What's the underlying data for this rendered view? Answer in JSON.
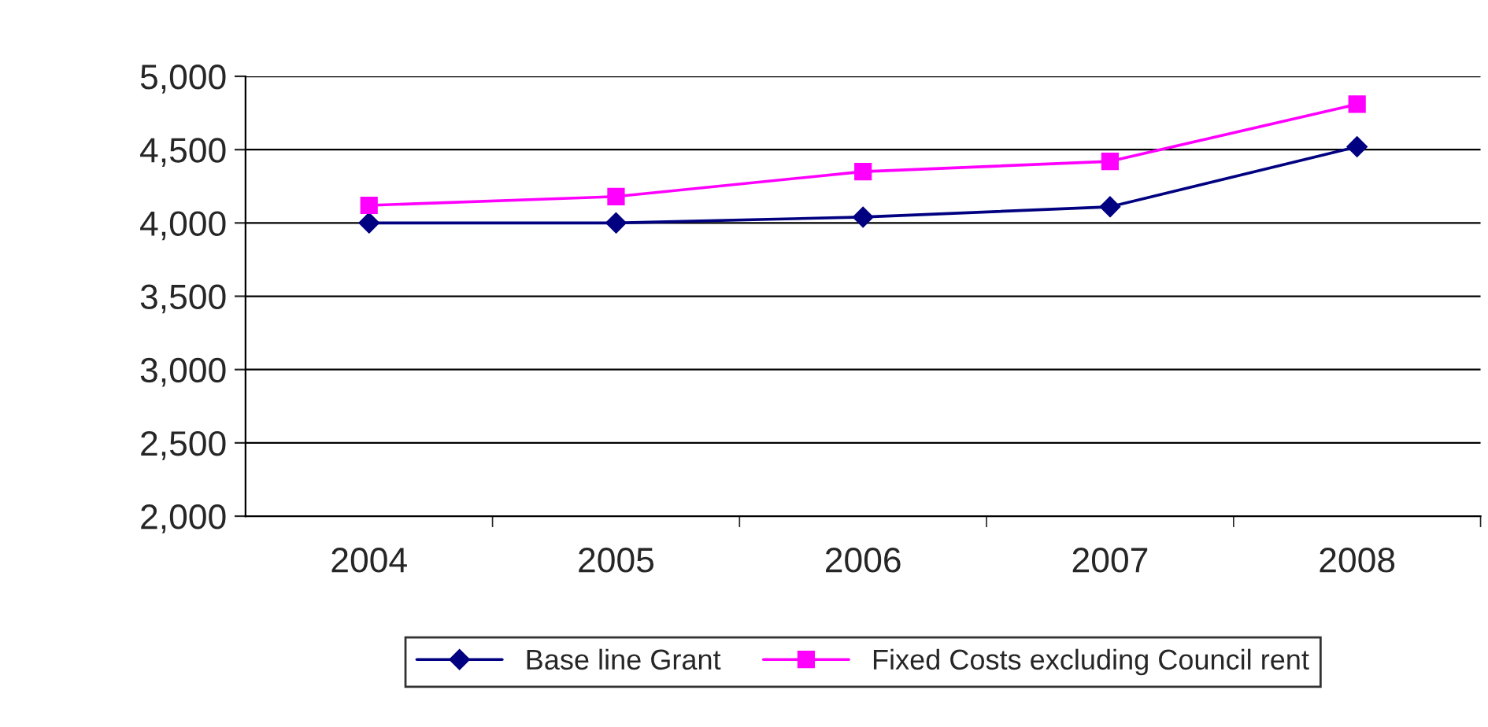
{
  "chart_data": {
    "type": "line",
    "categories": [
      "2004",
      "2005",
      "2006",
      "2007",
      "2008"
    ],
    "series": [
      {
        "name": "Base line Grant",
        "color": "#000080",
        "marker": "diamond",
        "values": [
          4000,
          4000,
          4040,
          4110,
          4520
        ]
      },
      {
        "name": "Fixed Costs excluding Council rent",
        "color": "#ff00ff",
        "marker": "square",
        "values": [
          4120,
          4180,
          4350,
          4420,
          4810
        ]
      }
    ],
    "ylim": [
      2000,
      5000
    ],
    "yticks": [
      {
        "value": 2000,
        "label": "2,000"
      },
      {
        "value": 2500,
        "label": "2,500"
      },
      {
        "value": 3000,
        "label": "3,000"
      },
      {
        "value": 3500,
        "label": "3,500"
      },
      {
        "value": 4000,
        "label": "4,000"
      },
      {
        "value": 4500,
        "label": "4,500"
      },
      {
        "value": 5000,
        "label": "5,000"
      }
    ],
    "grid": "y",
    "legend": "bottom",
    "line_style": "solid"
  }
}
